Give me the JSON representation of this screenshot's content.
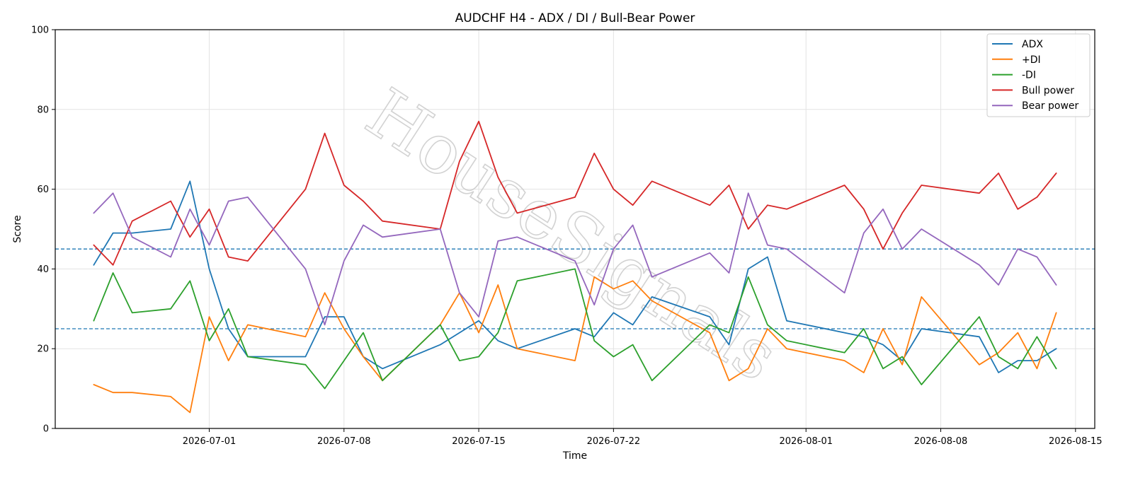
{
  "chart_data": {
    "type": "line",
    "title": "AUDCHF H4 - ADX / DI / Bull-Bear Power",
    "xlabel": "Time",
    "ylabel": "Score",
    "ylim": [
      0,
      100
    ],
    "xlim": [
      "2026-06-23",
      "2026-08-16"
    ],
    "yticks": [
      0,
      20,
      40,
      60,
      80,
      100
    ],
    "xticks": [
      "2026-07-01",
      "2026-07-08",
      "2026-07-15",
      "2026-07-22",
      "2026-08-01",
      "2026-08-08",
      "2026-08-15"
    ],
    "grid": true,
    "legend_position": "top-right",
    "reference_lines": [
      45,
      25
    ],
    "watermark": "HouseSignals",
    "x": [
      "2026-06-25",
      "2026-06-26",
      "2026-06-27",
      "2026-06-29",
      "2026-06-30",
      "2026-07-01",
      "2026-07-02",
      "2026-07-03",
      "2026-07-06",
      "2026-07-07",
      "2026-07-08",
      "2026-07-09",
      "2026-07-10",
      "2026-07-13",
      "2026-07-14",
      "2026-07-15",
      "2026-07-16",
      "2026-07-17",
      "2026-07-20",
      "2026-07-21",
      "2026-07-22",
      "2026-07-23",
      "2026-07-24",
      "2026-07-27",
      "2026-07-28",
      "2026-07-29",
      "2026-07-30",
      "2026-07-31",
      "2026-08-03",
      "2026-08-04",
      "2026-08-05",
      "2026-08-06",
      "2026-08-07",
      "2026-08-10",
      "2026-08-11",
      "2026-08-12",
      "2026-08-13",
      "2026-08-14"
    ],
    "series": [
      {
        "name": "ADX",
        "color": "#1f77b4",
        "values": [
          41,
          49,
          49,
          50,
          62,
          40,
          25,
          18,
          18,
          28,
          28,
          18,
          15,
          21,
          24,
          27,
          22,
          20,
          25,
          23,
          29,
          26,
          33,
          28,
          21,
          40,
          43,
          27,
          24,
          23,
          21,
          17,
          25,
          23,
          14,
          17,
          17,
          20
        ]
      },
      {
        "name": "+DI",
        "color": "#ff7f0e",
        "values": [
          11,
          9,
          9,
          8,
          4,
          28,
          17,
          26,
          23,
          34,
          25,
          18,
          12,
          26,
          34,
          24,
          36,
          20,
          17,
          38,
          35,
          37,
          32,
          24,
          12,
          15,
          25,
          20,
          17,
          14,
          25,
          16,
          33,
          16,
          19,
          24,
          15,
          29
        ]
      },
      {
        "name": "-DI",
        "color": "#2ca02c",
        "values": [
          27,
          39,
          29,
          30,
          37,
          22,
          30,
          18,
          16,
          10,
          17,
          24,
          12,
          26,
          17,
          18,
          24,
          37,
          40,
          22,
          18,
          21,
          12,
          26,
          24,
          38,
          26,
          22,
          19,
          25,
          15,
          18,
          11,
          28,
          18,
          15,
          23,
          15
        ]
      },
      {
        "name": "Bull power",
        "color": "#d62728",
        "values": [
          46,
          41,
          52,
          57,
          48,
          55,
          43,
          42,
          60,
          74,
          61,
          57,
          52,
          50,
          67,
          77,
          63,
          54,
          58,
          69,
          60,
          56,
          62,
          56,
          61,
          50,
          56,
          55,
          61,
          55,
          45,
          54,
          61,
          59,
          64,
          55,
          58,
          64
        ]
      },
      {
        "name": "Bear power",
        "color": "#9467bd",
        "values": [
          54,
          59,
          48,
          43,
          55,
          46,
          57,
          58,
          40,
          26,
          42,
          51,
          48,
          50,
          34,
          28,
          47,
          48,
          42,
          31,
          45,
          51,
          38,
          44,
          39,
          59,
          46,
          45,
          34,
          49,
          55,
          45,
          50,
          41,
          36,
          45,
          43,
          36
        ]
      }
    ]
  }
}
